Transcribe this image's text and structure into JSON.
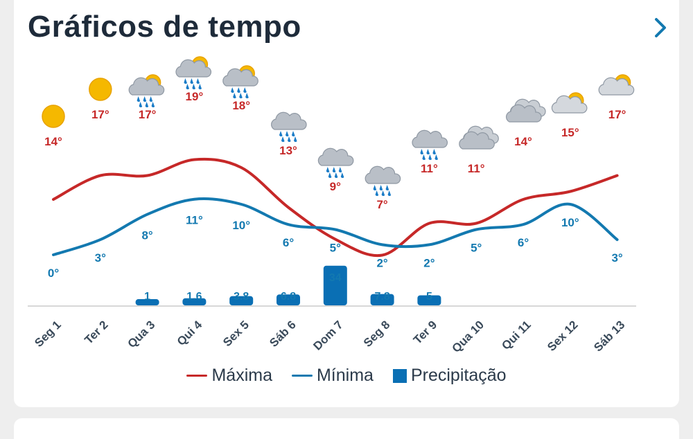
{
  "page": {
    "title": "Gráficos de tempo",
    "next_icon": "chevron-right-icon"
  },
  "colors": {
    "max": "#c62828",
    "min": "#1379b0",
    "precip": "#0a6fb4",
    "axis": "#d7d7d7",
    "tick": "#3a4a5a"
  },
  "chart_data": {
    "type": "line",
    "categories": [
      "Seg 1",
      "Ter 2",
      "Qua 3",
      "Qui 4",
      "Sex 5",
      "Sáb 6",
      "Dom 7",
      "Seg 8",
      "Ter 9",
      "Qua 10",
      "Qui 11",
      "Sex 12",
      "Sáb 13"
    ],
    "icons": [
      "sun",
      "sun",
      "sun-rain",
      "sun-rain",
      "sun-rain",
      "rain",
      "rain",
      "rain",
      "rain",
      "cloud",
      "cloud",
      "sun-cloud",
      "sun-cloud"
    ],
    "series": [
      {
        "name": "Máxima",
        "unit": "°",
        "values": [
          14,
          17,
          17,
          19,
          18,
          13,
          9,
          7,
          11,
          11,
          14,
          15,
          17
        ]
      },
      {
        "name": "Mínima",
        "unit": "°",
        "values": [
          0,
          3,
          8,
          11,
          10,
          6,
          5,
          2,
          2,
          5,
          6,
          10,
          3
        ]
      },
      {
        "name": "Precipitação",
        "values": [
          null,
          null,
          1,
          1.6,
          3.8,
          6.8,
          34,
          7.8,
          5,
          null,
          null,
          null,
          null
        ],
        "labels": [
          "",
          "",
          "1",
          "1.6",
          "3.8",
          "6.8",
          "34",
          "7.8",
          "5",
          "",
          "",
          "",
          ""
        ]
      }
    ]
  }
}
